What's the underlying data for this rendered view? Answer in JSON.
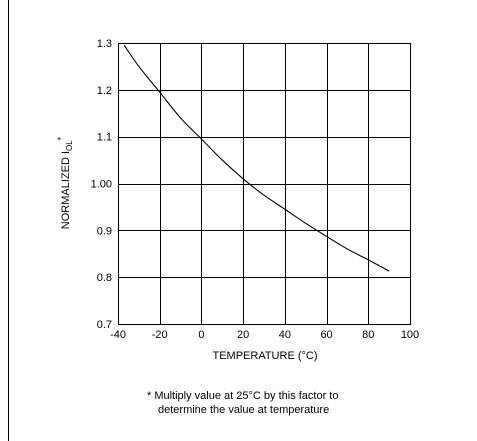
{
  "chart_data": {
    "type": "line",
    "xlabel": "TEMPERATURE (°C)",
    "ylabel_main": "NORMALIZED I",
    "ylabel_sub": "OL",
    "ylabel_sup": "*",
    "xlim": [
      -40,
      100
    ],
    "ylim": [
      0.7,
      1.3
    ],
    "x_ticks": [
      -40,
      -20,
      0,
      20,
      40,
      60,
      80,
      100
    ],
    "x_tick_labels": [
      "-40",
      "-20",
      "0",
      "20",
      "40",
      "60",
      "80",
      "100"
    ],
    "y_ticks": [
      0.7,
      0.8,
      0.9,
      1.0,
      1.1,
      1.2,
      1.3
    ],
    "y_tick_labels": [
      "0.7",
      "0.8",
      "0.9",
      "1.00",
      "1.1",
      "1.2",
      "1.3"
    ],
    "grid": true,
    "series": [
      {
        "x": [
          -37,
          -30,
          -20,
          -10,
          0,
          10,
          20,
          30,
          40,
          50,
          60,
          70,
          80,
          90
        ],
        "y": [
          1.295,
          1.25,
          1.195,
          1.14,
          1.095,
          1.05,
          1.01,
          0.975,
          0.945,
          0.915,
          0.887,
          0.86,
          0.837,
          0.813
        ]
      }
    ],
    "footnote_line1": "*  Multiply value at 25°C by this factor to",
    "footnote_line2": "determine the value at temperature"
  }
}
